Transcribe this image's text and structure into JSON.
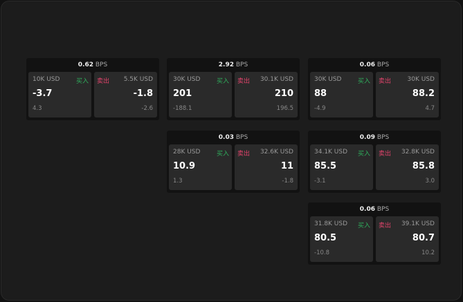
{
  "colors": {
    "buy": "#2fae5c",
    "sell": "#e0436b"
  },
  "labels": {
    "buy": "买入",
    "sell": "卖出",
    "unit": "BPS"
  },
  "cards": [
    {
      "spread": "0.62",
      "bid": {
        "amount": "10K USD",
        "price": "-3.7",
        "change": "4.3"
      },
      "ask": {
        "amount": "5.5K USD",
        "price": "-1.8",
        "change": "-2.6"
      }
    },
    {
      "spread": "2.92",
      "bid": {
        "amount": "30K USD",
        "price": "201",
        "change": "-188.1"
      },
      "ask": {
        "amount": "30.1K USD",
        "price": "210",
        "change": "196.5"
      }
    },
    {
      "spread": "0.06",
      "bid": {
        "amount": "30K USD",
        "price": "88",
        "change": "-4.9"
      },
      "ask": {
        "amount": "30K USD",
        "price": "88.2",
        "change": "4.7"
      }
    },
    {
      "spread": "0.03",
      "bid": {
        "amount": "28K USD",
        "price": "10.9",
        "change": "1.3"
      },
      "ask": {
        "amount": "32.6K USD",
        "price": "11",
        "change": "-1.8"
      }
    },
    {
      "spread": "0.09",
      "bid": {
        "amount": "34.1K USD",
        "price": "85.5",
        "change": "-3.1"
      },
      "ask": {
        "amount": "32.8K USD",
        "price": "85.8",
        "change": "3.0"
      }
    },
    {
      "spread": "0.06",
      "bid": {
        "amount": "31.8K USD",
        "price": "80.5",
        "change": "-10.8"
      },
      "ask": {
        "amount": "39.1K USD",
        "price": "80.7",
        "change": "10.2"
      }
    }
  ]
}
